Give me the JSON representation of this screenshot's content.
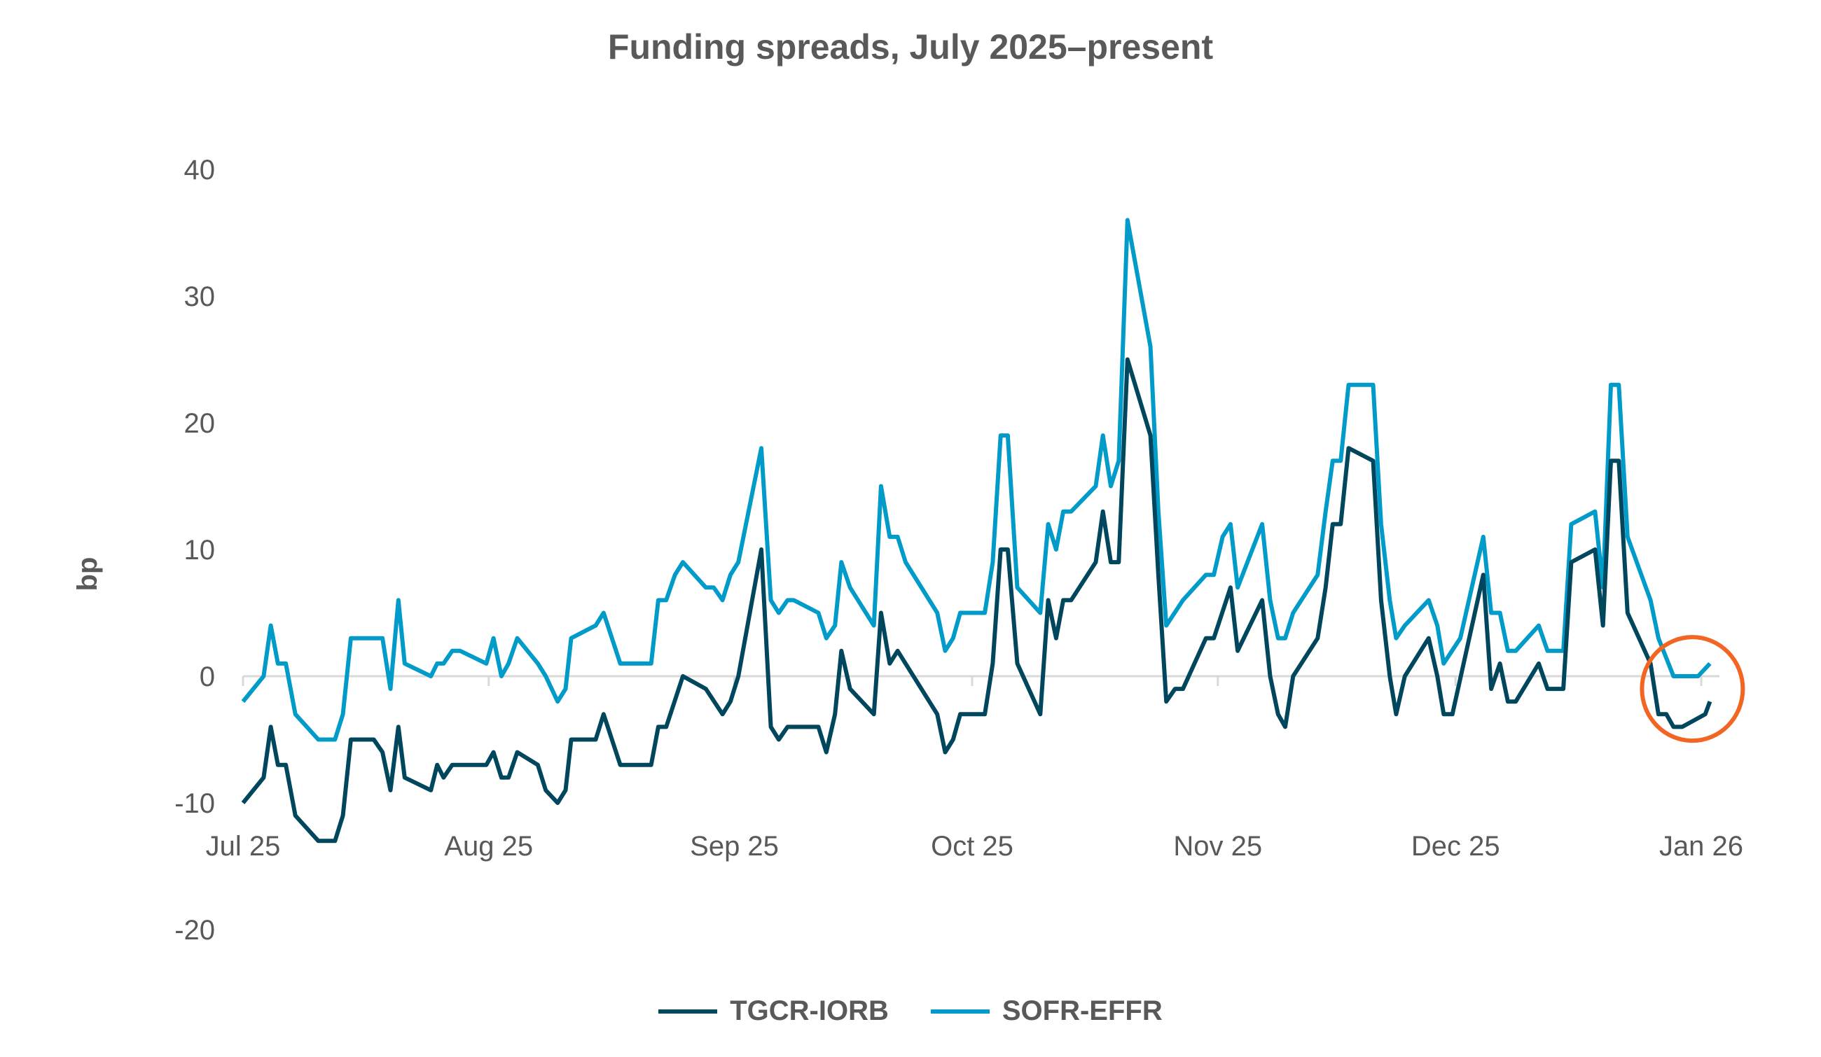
{
  "chart_data": {
    "type": "line",
    "title": "Funding spreads, July 2025–present",
    "xlabel": "",
    "ylabel": "bp",
    "x_units": "days since 1 Jul 2025",
    "xlim": [
      0,
      184
    ],
    "ylim": [
      -20,
      40
    ],
    "yticks": [
      -20,
      -10,
      0,
      10,
      20,
      30,
      40
    ],
    "xticks": [
      {
        "day": 0,
        "label": "Jul 25"
      },
      {
        "day": 31,
        "label": "Aug 25"
      },
      {
        "day": 62,
        "label": "Sep 25"
      },
      {
        "day": 92,
        "label": "Oct 25"
      },
      {
        "day": 123,
        "label": "Nov 25"
      },
      {
        "day": 153,
        "label": "Dec 25"
      },
      {
        "day": 184,
        "label": "Jan 26"
      }
    ],
    "grid": "zero line only",
    "legend_position": "bottom",
    "annotation": {
      "type": "circle",
      "color": "#F26522",
      "around_day": 182,
      "around_value": -1.5
    },
    "series": [
      {
        "name": "TGCR-IORB",
        "color": "#00465C",
        "points": [
          [
            0,
            -10
          ],
          [
            2.6,
            -8
          ],
          [
            3.5,
            -4
          ],
          [
            4.4,
            -7
          ],
          [
            5.4,
            -7
          ],
          [
            6.6,
            -11
          ],
          [
            9.5,
            -13
          ],
          [
            11.6,
            -13
          ],
          [
            12.6,
            -11
          ],
          [
            13.6,
            -5
          ],
          [
            16.5,
            -5
          ],
          [
            17.6,
            -6
          ],
          [
            18.6,
            -9
          ],
          [
            19.6,
            -4
          ],
          [
            20.4,
            -8
          ],
          [
            23.7,
            -9
          ],
          [
            24.5,
            -7
          ],
          [
            25.3,
            -8
          ],
          [
            26.4,
            -7
          ],
          [
            30.7,
            -7
          ],
          [
            31.6,
            -6
          ],
          [
            32.6,
            -8
          ],
          [
            33.5,
            -8
          ],
          [
            34.6,
            -6
          ],
          [
            37.2,
            -7
          ],
          [
            38.2,
            -9
          ],
          [
            39.7,
            -10
          ],
          [
            40.7,
            -9
          ],
          [
            41.4,
            -5
          ],
          [
            44.5,
            -5
          ],
          [
            45.5,
            -3
          ],
          [
            47.6,
            -7
          ],
          [
            51.5,
            -7
          ],
          [
            52.4,
            -4
          ],
          [
            53.4,
            -4
          ],
          [
            55.5,
            0
          ],
          [
            58.4,
            -1
          ],
          [
            60.5,
            -3
          ],
          [
            61.5,
            -2
          ],
          [
            62.5,
            0
          ],
          [
            65.4,
            10
          ],
          [
            66.6,
            -4
          ],
          [
            67.6,
            -5
          ],
          [
            68.7,
            -4
          ],
          [
            72.6,
            -4
          ],
          [
            73.6,
            -6
          ],
          [
            74.7,
            -3
          ],
          [
            75.5,
            2
          ],
          [
            76.6,
            -1
          ],
          [
            79.6,
            -3
          ],
          [
            80.5,
            5
          ],
          [
            81.6,
            1
          ],
          [
            82.6,
            2
          ],
          [
            87.6,
            -3
          ],
          [
            88.6,
            -6
          ],
          [
            89.6,
            -5
          ],
          [
            90.5,
            -3
          ],
          [
            93.6,
            -3
          ],
          [
            94.6,
            1
          ],
          [
            95.6,
            10
          ],
          [
            96.5,
            10
          ],
          [
            97.7,
            1
          ],
          [
            100.6,
            -3
          ],
          [
            101.6,
            6
          ],
          [
            102.6,
            3
          ],
          [
            103.5,
            6
          ],
          [
            104.5,
            6
          ],
          [
            107.6,
            9
          ],
          [
            108.5,
            13
          ],
          [
            109.5,
            9
          ],
          [
            110.5,
            9
          ],
          [
            111.6,
            25
          ],
          [
            114.5,
            19
          ],
          [
            115.5,
            8
          ],
          [
            116.5,
            -2
          ],
          [
            117.6,
            -1
          ],
          [
            118.6,
            -1
          ],
          [
            121.5,
            3
          ],
          [
            122.5,
            3
          ],
          [
            124.6,
            7
          ],
          [
            125.5,
            2
          ],
          [
            128.6,
            6
          ],
          [
            129.6,
            0
          ],
          [
            130.6,
            -3
          ],
          [
            131.5,
            -4
          ],
          [
            132.5,
            0
          ],
          [
            135.6,
            3
          ],
          [
            136.6,
            7
          ],
          [
            137.5,
            12
          ],
          [
            138.5,
            12
          ],
          [
            139.5,
            18
          ],
          [
            142.6,
            17
          ],
          [
            143.6,
            6
          ],
          [
            144.7,
            0
          ],
          [
            145.5,
            -3
          ],
          [
            146.6,
            0
          ],
          [
            149.6,
            3
          ],
          [
            150.7,
            0
          ],
          [
            151.5,
            -3
          ],
          [
            152.6,
            -3
          ],
          [
            156.5,
            8
          ],
          [
            157.5,
            -1
          ],
          [
            158.6,
            1
          ],
          [
            159.6,
            -2
          ],
          [
            160.6,
            -2
          ],
          [
            163.5,
            1
          ],
          [
            164.6,
            -1
          ],
          [
            166.6,
            -1
          ],
          [
            167.6,
            9
          ],
          [
            170.6,
            10
          ],
          [
            171.6,
            4
          ],
          [
            172.6,
            17
          ],
          [
            173.6,
            17
          ],
          [
            174.7,
            5
          ],
          [
            177.6,
            1
          ],
          [
            178.6,
            -3
          ],
          [
            179.6,
            -3
          ],
          [
            180.5,
            -4
          ],
          [
            181.6,
            -4
          ],
          [
            184.5,
            -3
          ],
          [
            185.1,
            -2
          ]
        ]
      },
      {
        "name": "SOFR-EFFR",
        "color": "#009BC8",
        "points": [
          [
            0,
            -2
          ],
          [
            2.6,
            0
          ],
          [
            3.5,
            4
          ],
          [
            4.4,
            1
          ],
          [
            5.4,
            1
          ],
          [
            6.6,
            -3
          ],
          [
            9.5,
            -5
          ],
          [
            11.6,
            -5
          ],
          [
            12.6,
            -3
          ],
          [
            13.6,
            3
          ],
          [
            17.6,
            3
          ],
          [
            18.6,
            -1
          ],
          [
            19.6,
            6
          ],
          [
            20.4,
            1
          ],
          [
            23.7,
            0
          ],
          [
            24.5,
            1
          ],
          [
            25.3,
            1
          ],
          [
            26.4,
            2
          ],
          [
            27.4,
            2
          ],
          [
            30.7,
            1
          ],
          [
            31.6,
            3
          ],
          [
            32.6,
            0
          ],
          [
            33.5,
            1
          ],
          [
            34.6,
            3
          ],
          [
            37.2,
            1
          ],
          [
            38.2,
            0
          ],
          [
            39.7,
            -2
          ],
          [
            40.7,
            -1
          ],
          [
            41.4,
            3
          ],
          [
            44.5,
            4
          ],
          [
            45.5,
            5
          ],
          [
            47.6,
            1
          ],
          [
            51.5,
            1
          ],
          [
            52.4,
            6
          ],
          [
            53.4,
            6
          ],
          [
            54.5,
            8
          ],
          [
            55.5,
            9
          ],
          [
            58.4,
            7
          ],
          [
            59.4,
            7
          ],
          [
            60.5,
            6
          ],
          [
            61.5,
            8
          ],
          [
            62.5,
            9
          ],
          [
            65.4,
            18
          ],
          [
            66.6,
            6
          ],
          [
            67.6,
            5
          ],
          [
            68.7,
            6
          ],
          [
            69.5,
            6
          ],
          [
            72.6,
            5
          ],
          [
            73.6,
            3
          ],
          [
            74.7,
            4
          ],
          [
            75.5,
            9
          ],
          [
            76.6,
            7
          ],
          [
            79.6,
            4
          ],
          [
            80.5,
            15
          ],
          [
            81.6,
            11
          ],
          [
            82.6,
            11
          ],
          [
            83.6,
            9
          ],
          [
            87.6,
            5
          ],
          [
            88.6,
            2
          ],
          [
            89.6,
            3
          ],
          [
            90.5,
            5
          ],
          [
            93.6,
            5
          ],
          [
            94.6,
            9
          ],
          [
            95.6,
            19
          ],
          [
            96.5,
            19
          ],
          [
            97.7,
            7
          ],
          [
            100.6,
            5
          ],
          [
            101.6,
            12
          ],
          [
            102.6,
            10
          ],
          [
            103.5,
            13
          ],
          [
            104.5,
            13
          ],
          [
            107.6,
            15
          ],
          [
            108.5,
            19
          ],
          [
            109.5,
            15
          ],
          [
            110.5,
            17
          ],
          [
            111.6,
            36
          ],
          [
            114.5,
            26
          ],
          [
            115.5,
            13
          ],
          [
            116.5,
            4
          ],
          [
            118.6,
            6
          ],
          [
            121.5,
            8
          ],
          [
            122.5,
            8
          ],
          [
            123.6,
            11
          ],
          [
            124.6,
            12
          ],
          [
            125.5,
            7
          ],
          [
            128.6,
            12
          ],
          [
            129.6,
            6
          ],
          [
            130.6,
            3
          ],
          [
            131.5,
            3
          ],
          [
            132.5,
            5
          ],
          [
            135.6,
            8
          ],
          [
            136.6,
            13
          ],
          [
            137.5,
            17
          ],
          [
            138.5,
            17
          ],
          [
            139.5,
            23
          ],
          [
            142.6,
            23
          ],
          [
            143.6,
            12
          ],
          [
            144.7,
            6
          ],
          [
            145.5,
            3
          ],
          [
            146.6,
            4
          ],
          [
            149.6,
            6
          ],
          [
            150.7,
            4
          ],
          [
            151.5,
            1
          ],
          [
            153.6,
            3
          ],
          [
            156.5,
            11
          ],
          [
            157.5,
            5
          ],
          [
            158.6,
            5
          ],
          [
            159.6,
            2
          ],
          [
            160.6,
            2
          ],
          [
            163.5,
            4
          ],
          [
            164.6,
            2
          ],
          [
            166.6,
            2
          ],
          [
            167.6,
            12
          ],
          [
            170.6,
            13
          ],
          [
            171.6,
            7
          ],
          [
            172.6,
            23
          ],
          [
            173.6,
            23
          ],
          [
            174.7,
            11
          ],
          [
            177.6,
            6
          ],
          [
            178.6,
            3
          ],
          [
            180.5,
            0
          ],
          [
            183.6,
            0
          ],
          [
            185.1,
            1
          ]
        ]
      }
    ]
  }
}
